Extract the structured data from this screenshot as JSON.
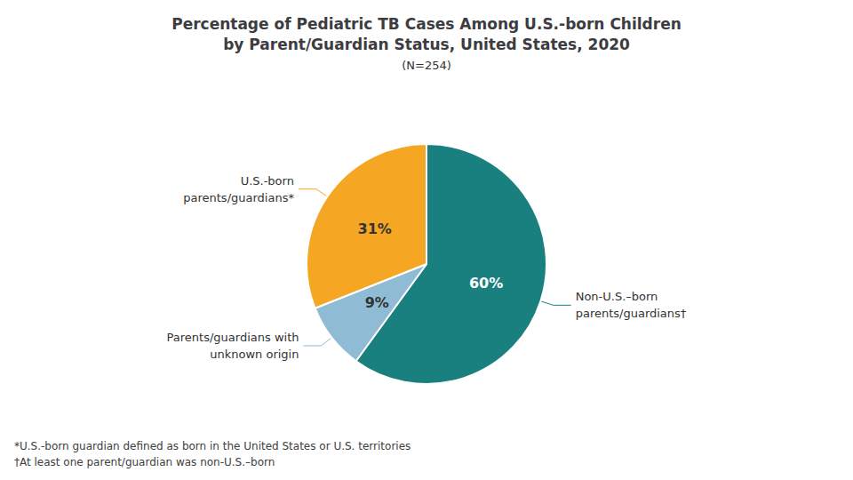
{
  "chart_data": {
    "type": "pie",
    "title": "Percentage of Pediatric TB Cases Among U.S.-born Children\nby Parent/Guardian Status, United States, 2020",
    "subtitle": "(N=254)",
    "categories": [
      "Non-U.S.–born\nparents/guardians†",
      "Parents/guardians with\nunknown origin",
      "U.S.-born\nparents/guardians*"
    ],
    "values": [
      60,
      9,
      31
    ],
    "value_labels": [
      "60%",
      "9%",
      "31%"
    ],
    "colors": [
      "#1a7f7f",
      "#8fbcd4",
      "#f5a623"
    ],
    "data_labels": true,
    "annotations": [
      "*U.S.-born guardian defined as born in the United States or U.S. territories",
      "†At least one parent/guardian was non-U.S.–born"
    ]
  }
}
